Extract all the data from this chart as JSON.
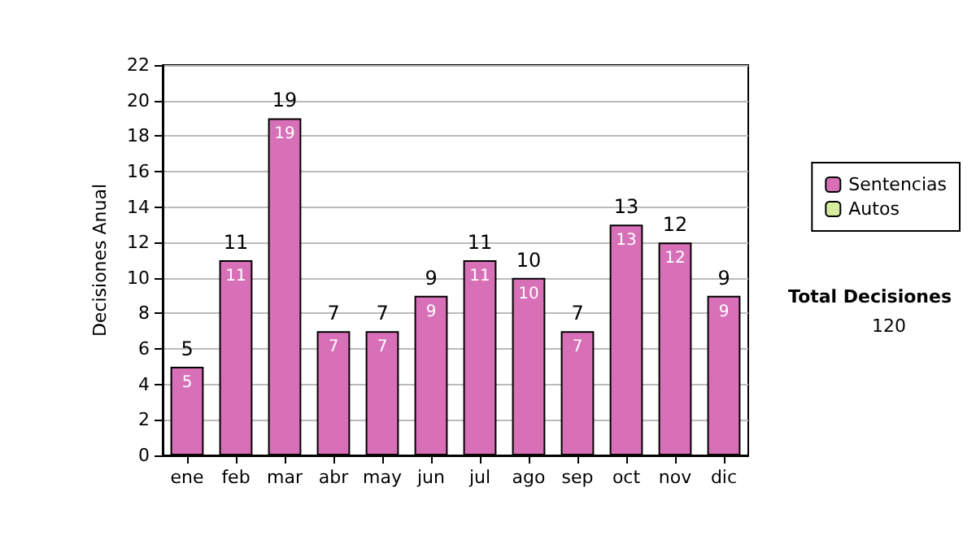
{
  "chart_data": {
    "type": "bar",
    "ylabel": "Decisiones Anual",
    "stacked": true,
    "categories": [
      "ene",
      "feb",
      "mar",
      "abr",
      "may",
      "jun",
      "jul",
      "ago",
      "sep",
      "oct",
      "nov",
      "dic"
    ],
    "series": [
      {
        "name": "Sentencias",
        "color": "#d870b8",
        "values": [
          5,
          11,
          19,
          7,
          7,
          9,
          11,
          10,
          7,
          13,
          12,
          9
        ],
        "value_labels": [
          "5",
          "11",
          "19",
          "7",
          "7",
          "9",
          "11",
          "10",
          "7",
          "13",
          "12",
          "9"
        ]
      },
      {
        "name": "Autos",
        "color": "#d8eca0",
        "values": [
          0,
          0,
          0,
          0,
          0,
          0,
          0,
          0,
          0,
          0,
          0,
          0
        ]
      }
    ],
    "totals": [
      "5",
      "11",
      "19",
      "7",
      "7",
      "9",
      "11",
      "10",
      "7",
      "13",
      "12",
      "9"
    ],
    "ylim": [
      0,
      22
    ],
    "yticks": [
      0,
      2,
      4,
      6,
      8,
      10,
      12,
      14,
      16,
      18,
      20,
      22
    ],
    "grid": "y",
    "legend": "right",
    "annotations": [
      "Total Decisiones",
      "120"
    ]
  }
}
